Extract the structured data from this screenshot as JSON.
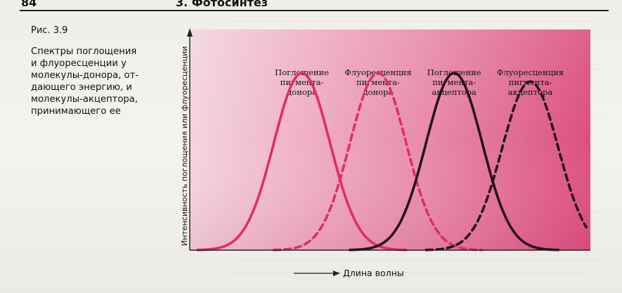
{
  "header": {
    "page_number": "84",
    "chapter_title": "3. Фотосинтез"
  },
  "caption": {
    "figure_label": "Рис. 3.9",
    "text": "Спектры поглощения\nи флуоресценции у\nмолекулы-донора, от-\nдающего энергию, и\nмолекулы-акцептора,\nпринимающего ее"
  },
  "colors": {
    "panel_light": "#f3d5de",
    "panel_mid": "#e88aa7",
    "panel_deep": "#d93a6e",
    "curve_pink": "#e02d68",
    "curve_dark": "#2b0f1c",
    "axis": "#222222"
  },
  "chart_data": {
    "type": "line",
    "title": "",
    "xlabel": "Длина волны",
    "ylabel": "Интенсивность поглощения или флуоресценции",
    "grid": false,
    "series": [
      {
        "name": "Поглощение пигмента-донора",
        "style": "solid",
        "color": "pink",
        "peak_x": 0.28,
        "peak_y": 0.84,
        "width": 0.07
      },
      {
        "name": "Флуоресценция пигмента-донора",
        "style": "dashed",
        "color": "pink",
        "peak_x": 0.47,
        "peak_y": 0.84,
        "width": 0.07
      },
      {
        "name": "Поглощение пигмента-акцептора",
        "style": "solid",
        "color": "dark",
        "peak_x": 0.66,
        "peak_y": 0.84,
        "width": 0.07
      },
      {
        "name": "Флуоресценция пигмента-акцептора",
        "style": "dashed",
        "color": "dark",
        "peak_x": 0.85,
        "peak_y": 0.8,
        "width": 0.07
      }
    ],
    "curve_labels": [
      "Поглощение\nпигмента-\nдонора",
      "Флуоресценция\nпигмента-\nдонора",
      "Поглощение\nпигмента-\nакцептора",
      "Флуоресценция\nпигмента-\nакцептора"
    ]
  }
}
